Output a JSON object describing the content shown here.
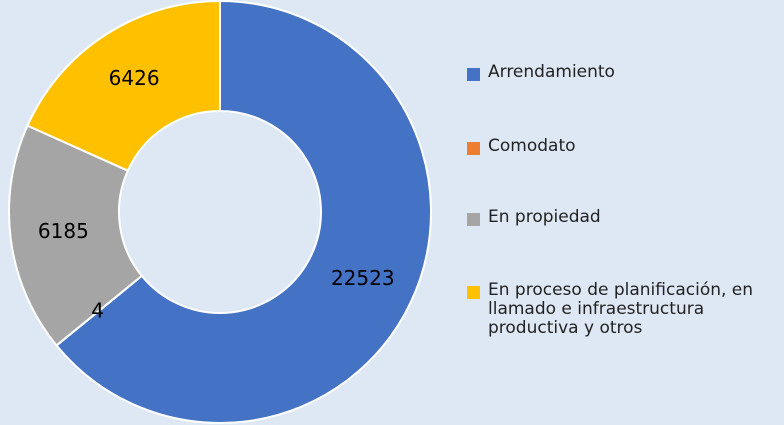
{
  "chart_data": {
    "type": "donut",
    "categories": [
      "Arrendamiento",
      "Comodato",
      "En propiedad",
      "En proceso de planificación, en llamado e infraestructura productiva y otros"
    ],
    "values": [
      22523,
      4,
      6185,
      6426
    ],
    "colors": [
      "#4472c4",
      "#ed7d31",
      "#a5a5a5",
      "#ffc000"
    ],
    "legend": "right"
  }
}
